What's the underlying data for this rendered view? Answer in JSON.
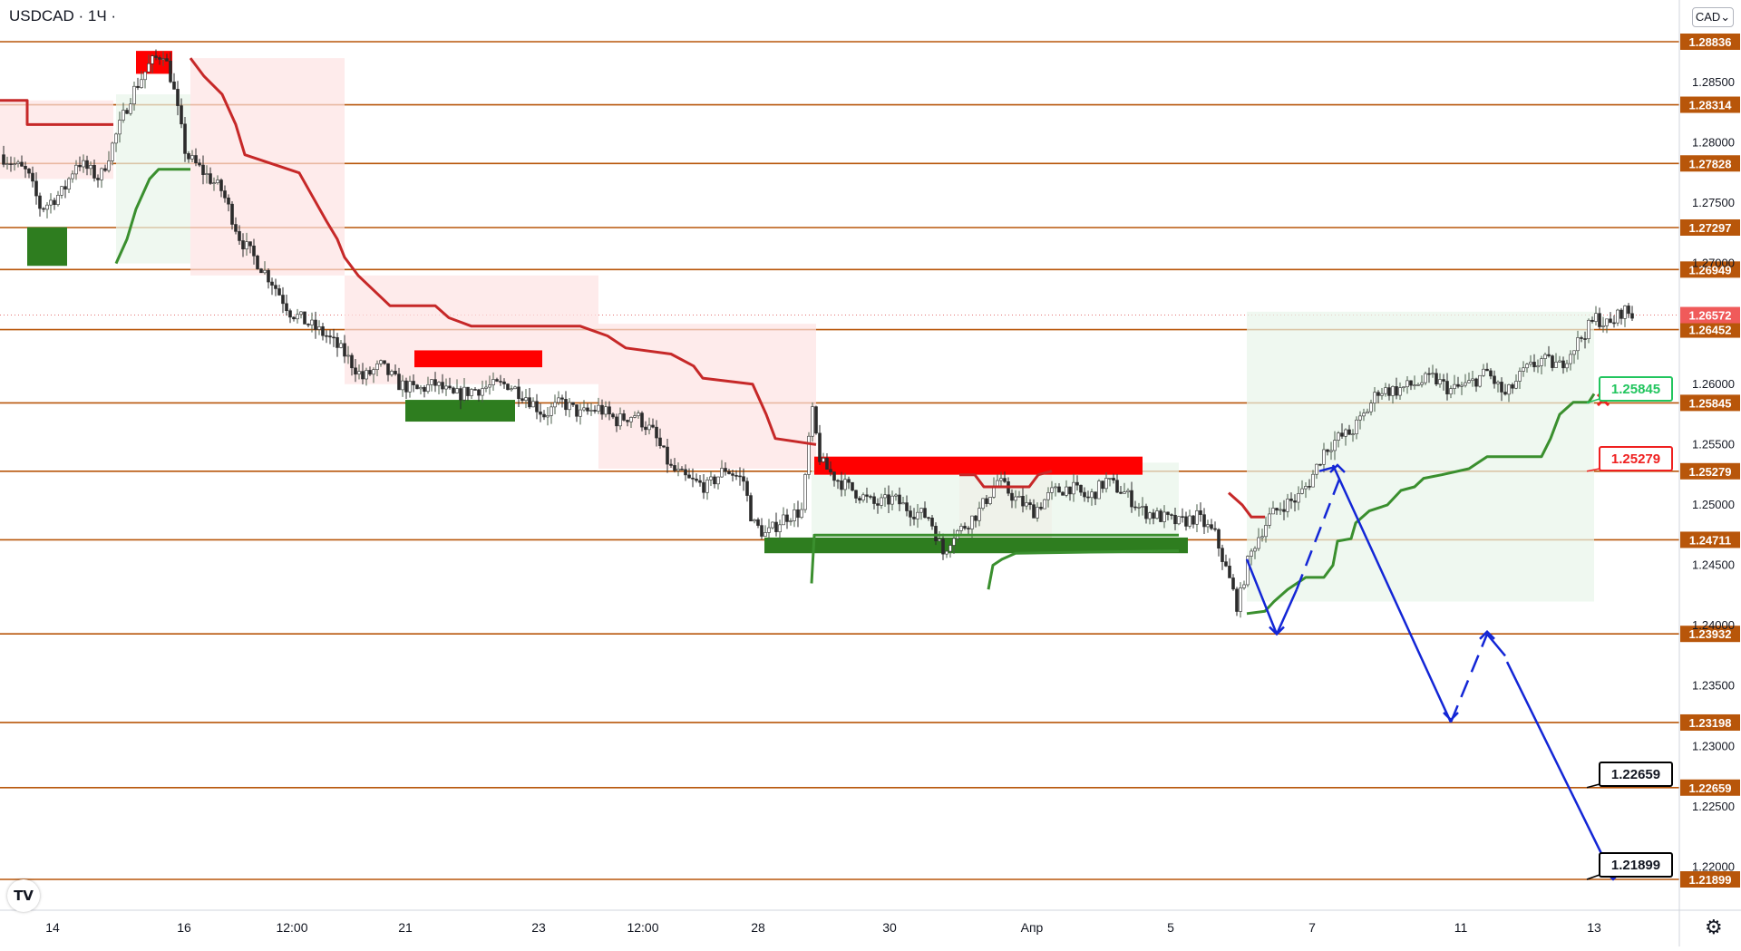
{
  "chart_data": {
    "type": "candlestick",
    "symbol": "USDCAD · 1Ч ·",
    "currency": "CAD",
    "currency_marker": "⌄",
    "y_ticks": [
      "1.28500",
      "1.28000",
      "1.27500",
      "1.27000",
      "1.26000",
      "1.25500",
      "1.25000",
      "1.24500",
      "1.24000",
      "1.23500",
      "1.23000",
      "1.22500",
      "1.22000"
    ],
    "x_ticks": [
      "14",
      "16",
      "12:00",
      "21",
      "23",
      "12:00",
      "28",
      "30",
      "Апр",
      "5",
      "7",
      "11",
      "13"
    ],
    "last_price": "1.26572",
    "levels": [
      "1.28836",
      "1.28314",
      "1.27828",
      "1.27297",
      "1.26949",
      "1.26452",
      "1.25845",
      "1.25279",
      "1.24711",
      "1.23932",
      "1.23198",
      "1.22659",
      "1.21899"
    ],
    "callouts": [
      {
        "price": "1.25845",
        "color": "#22c55e"
      },
      {
        "price": "1.25279",
        "color": "#ef2020"
      },
      {
        "price": "1.22659",
        "color": "#000000"
      },
      {
        "price": "1.21899",
        "color": "#000000"
      }
    ],
    "colors": {
      "level": "#b8560a",
      "bear": "#c62828",
      "bull": "#3a8f2e",
      "projection": "#1326d6",
      "zone_red": "#ff0000",
      "zone_green": "#2e7d1f"
    }
  },
  "ui": {
    "logo_text": "TV",
    "settings_icon": "gear-icon"
  }
}
